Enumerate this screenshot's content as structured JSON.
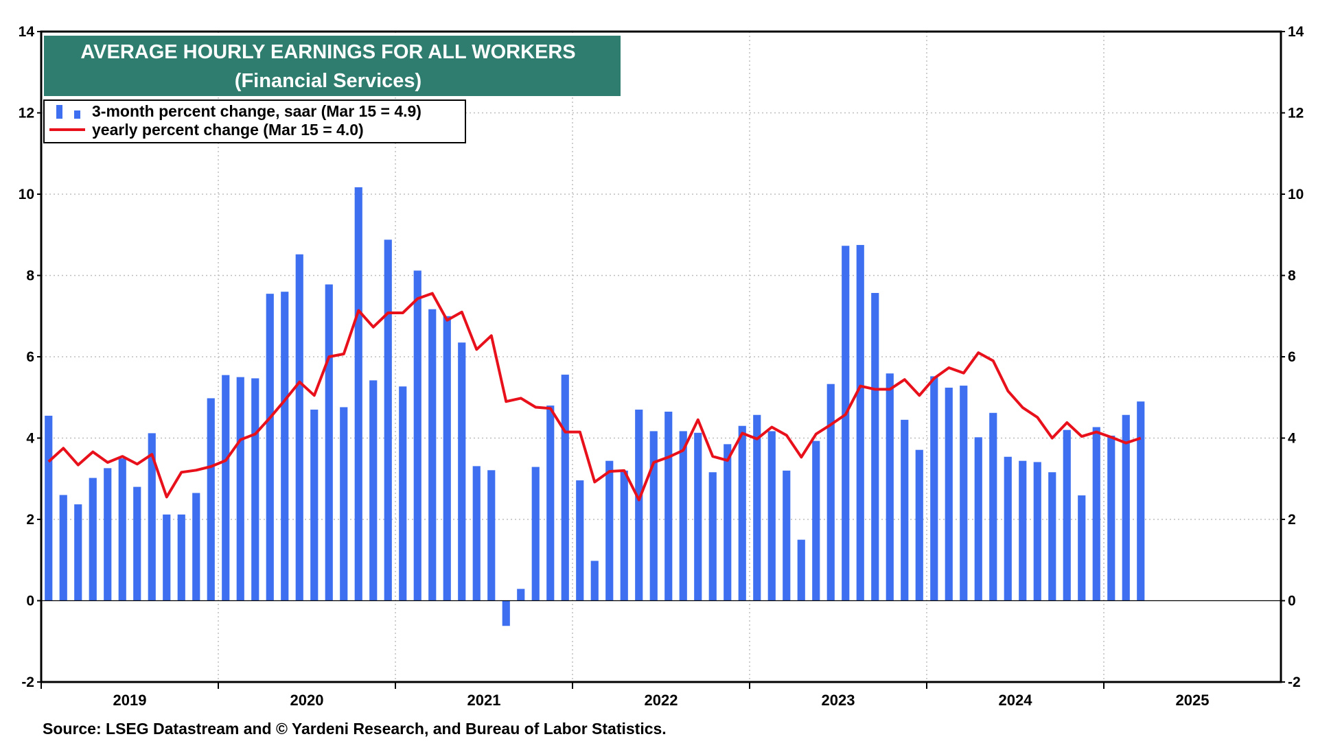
{
  "chart_data": {
    "type": "bar",
    "title": "AVERAGE HOURLY EARNINGS FOR ALL WORKERS",
    "subtitle": "(Financial Services)",
    "source": "Source: LSEG Datastream and © Yardeni Research, and Bureau of Labor Statistics.",
    "ylim": [
      -2,
      14
    ],
    "yticks": [
      -2,
      0,
      2,
      4,
      6,
      8,
      10,
      12,
      14
    ],
    "year_labels": [
      "2019",
      "2020",
      "2021",
      "2022",
      "2023",
      "2024",
      "2025"
    ],
    "x_start": "2019-01",
    "x_end": "2025-12",
    "grid": true,
    "legend_position": "top-left",
    "colors": {
      "bars": "#3d6ff0",
      "line": "#e8101a",
      "title_bg": "#2e7d6e"
    },
    "series": [
      {
        "name": "3-month percent change, saar (Mar 15 = 4.9)",
        "type": "bar",
        "start": "2019-01",
        "values": [
          4.55,
          2.6,
          2.37,
          3.02,
          3.26,
          3.5,
          2.8,
          4.12,
          2.12,
          2.12,
          2.65,
          4.98,
          5.55,
          5.5,
          5.47,
          7.55,
          7.6,
          8.52,
          4.7,
          7.78,
          4.76,
          10.17,
          5.42,
          8.88,
          5.27,
          8.12,
          7.17,
          7.0,
          6.35,
          3.31,
          3.21,
          -0.62,
          0.29,
          3.29,
          4.8,
          5.56,
          2.96,
          0.98,
          3.44,
          3.2,
          4.7,
          4.17,
          4.65,
          4.17,
          4.13,
          3.16,
          3.85,
          4.3,
          4.57,
          4.17,
          3.2,
          1.5,
          3.93,
          5.33,
          8.73,
          8.75,
          7.57,
          5.59,
          4.45,
          3.71,
          5.52,
          5.24,
          5.29,
          4.02,
          4.62,
          3.54,
          3.44,
          3.41,
          3.16,
          4.2,
          2.59,
          4.27,
          4.06,
          4.57,
          4.9
        ]
      },
      {
        "name": "yearly percent change (Mar 15 = 4.0)",
        "type": "line",
        "start": "2019-01",
        "values": [
          3.42,
          3.75,
          3.34,
          3.66,
          3.4,
          3.55,
          3.36,
          3.6,
          2.55,
          3.16,
          3.21,
          3.3,
          3.45,
          3.96,
          4.1,
          4.5,
          4.93,
          5.38,
          5.05,
          6.0,
          6.07,
          7.14,
          6.73,
          7.08,
          7.08,
          7.43,
          7.56,
          6.9,
          7.1,
          6.18,
          6.52,
          4.9,
          4.98,
          4.76,
          4.73,
          4.15,
          4.15,
          2.92,
          3.18,
          3.2,
          2.48,
          3.4,
          3.53,
          3.7,
          4.45,
          3.55,
          3.45,
          4.12,
          3.98,
          4.27,
          4.07,
          3.53,
          4.1,
          4.33,
          4.58,
          5.28,
          5.2,
          5.2,
          5.44,
          5.05,
          5.47,
          5.73,
          5.6,
          6.1,
          5.9,
          5.16,
          4.75,
          4.51,
          4.0,
          4.38,
          4.04,
          4.15,
          4.02,
          3.88,
          4.0
        ]
      }
    ]
  }
}
